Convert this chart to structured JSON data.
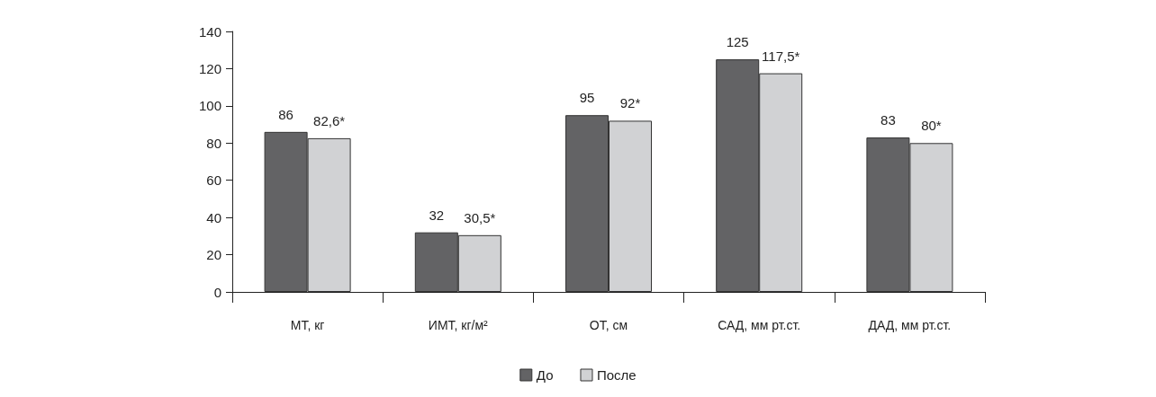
{
  "chart_data": {
    "type": "bar",
    "categories": [
      "МТ, кг",
      "ИМТ, кг/м²",
      "ОТ, см",
      "САД, мм рт.ст.",
      "ДАД, мм рт.ст."
    ],
    "series": [
      {
        "name": "До",
        "color": "#636365",
        "values": [
          86,
          32,
          95,
          125,
          83
        ],
        "value_labels": [
          "86",
          "32",
          "95",
          "125",
          "83"
        ]
      },
      {
        "name": "После",
        "color": "#d1d2d4",
        "values": [
          82.6,
          30.5,
          92,
          117.5,
          80
        ],
        "value_labels": [
          "82,6*",
          "30,5*",
          "92*",
          "117,5*",
          "80*"
        ]
      }
    ],
    "ylim": [
      0,
      140
    ],
    "yticks": [
      0,
      20,
      40,
      60,
      80,
      100,
      120,
      140
    ],
    "grid": false,
    "legend": "bottom"
  }
}
